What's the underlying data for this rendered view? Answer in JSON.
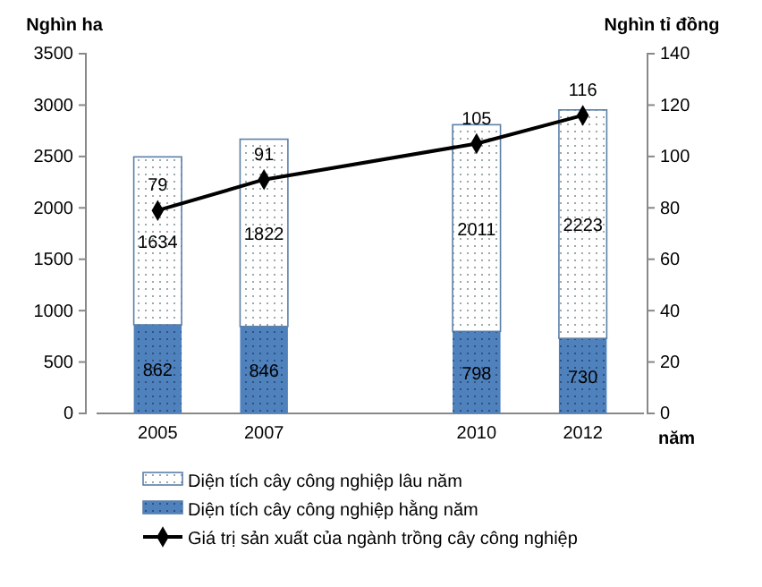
{
  "chart_data": {
    "type": "bar",
    "stacked": true,
    "categories": [
      "2005",
      "2007",
      null,
      "2010",
      "2012"
    ],
    "xlabel": "năm",
    "ylabel": "Nghìn ha",
    "y2label": "Nghìn tỉ đồng",
    "ylim": [
      0,
      3500
    ],
    "yticks": [
      0,
      500,
      1000,
      1500,
      2000,
      2500,
      3000,
      3500
    ],
    "y2lim": [
      0,
      140
    ],
    "y2ticks": [
      0,
      20,
      40,
      60,
      80,
      100,
      120,
      140
    ],
    "data_labels": true,
    "grid": false,
    "legend": "bottom",
    "marker": "diamond",
    "line_style": "solid",
    "series": [
      {
        "name": "Diện tích cây công nghiệp hằng năm",
        "color": "#4f81bd",
        "values": [
          862,
          846,
          null,
          798,
          730
        ]
      },
      {
        "name": "Diện tích cây công nghiệp lâu năm",
        "color": "#ffffff",
        "values": [
          1634,
          1822,
          null,
          2011,
          2223
        ]
      },
      {
        "name": "Giá trị sản xuất của ngành trồng cây công nghiệp",
        "type": "line",
        "axis": "y2",
        "color": "#000000",
        "values": [
          79,
          91,
          null,
          105,
          116
        ]
      }
    ]
  }
}
